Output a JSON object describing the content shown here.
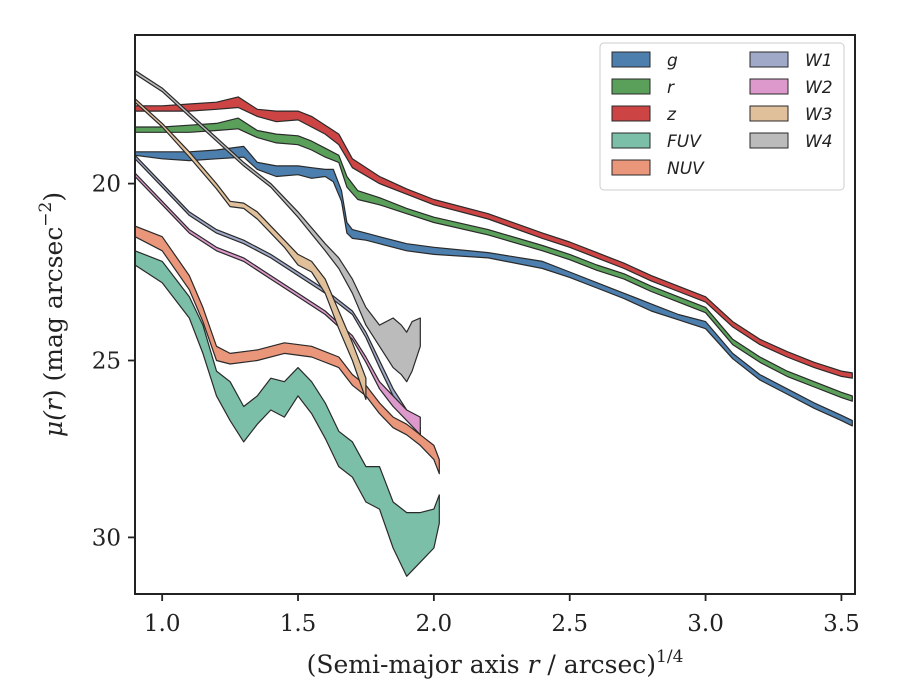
{
  "chart_data": {
    "type": "area",
    "xlabel": "(Semi-major axis r / arcsec)^1/4",
    "xlabel_parts": {
      "pre": "(Semi-major axis ",
      "var": "r",
      "post": " / arcsec)",
      "sup": "1/4"
    },
    "ylabel": "μ(r) (mag arcsec^−2)",
    "ylabel_parts": {
      "mu": "μ(",
      "var": "r",
      "post": ") (mag arcsec",
      "sup": "−2",
      "close": ")"
    },
    "xlim": [
      0.9,
      3.55
    ],
    "ylim": [
      31.6,
      15.8
    ],
    "y_inverted": true,
    "x_ticks": [
      1.0,
      1.5,
      2.0,
      2.5,
      3.0,
      3.5
    ],
    "x_tick_labels": [
      "1.0",
      "1.5",
      "2.0",
      "2.5",
      "3.0",
      "3.5"
    ],
    "y_ticks": [
      20,
      25,
      30
    ],
    "y_tick_labels": [
      "20",
      "25",
      "30"
    ],
    "grid": false,
    "legend_position": "top-right",
    "legend_columns": 2,
    "series": [
      {
        "name": "g",
        "color": "#4c7fae",
        "points": [
          [
            0.9,
            19.1,
            19.2
          ],
          [
            1.0,
            19.1,
            19.3
          ],
          [
            1.1,
            19.1,
            19.35
          ],
          [
            1.2,
            19.05,
            19.3
          ],
          [
            1.3,
            18.95,
            19.25
          ],
          [
            1.35,
            19.4,
            19.6
          ],
          [
            1.42,
            19.5,
            19.8
          ],
          [
            1.5,
            19.5,
            19.75
          ],
          [
            1.55,
            19.55,
            19.85
          ],
          [
            1.6,
            19.6,
            19.8
          ],
          [
            1.63,
            19.6,
            19.95
          ],
          [
            1.66,
            20.2,
            20.5
          ],
          [
            1.68,
            21.1,
            21.4
          ],
          [
            1.7,
            21.3,
            21.55
          ],
          [
            1.75,
            21.4,
            21.6
          ],
          [
            1.8,
            21.5,
            21.7
          ],
          [
            1.9,
            21.7,
            21.9
          ],
          [
            2.0,
            21.8,
            22.0
          ],
          [
            2.2,
            21.95,
            22.1
          ],
          [
            2.4,
            22.2,
            22.4
          ],
          [
            2.5,
            22.5,
            22.65
          ],
          [
            2.6,
            22.8,
            22.95
          ],
          [
            2.7,
            23.1,
            23.25
          ],
          [
            2.8,
            23.4,
            23.6
          ],
          [
            2.9,
            23.7,
            23.85
          ],
          [
            3.0,
            23.9,
            24.1
          ],
          [
            3.1,
            24.8,
            24.95
          ],
          [
            3.2,
            25.4,
            25.55
          ],
          [
            3.3,
            25.8,
            25.95
          ],
          [
            3.4,
            26.2,
            26.35
          ],
          [
            3.5,
            26.55,
            26.7
          ],
          [
            3.54,
            26.7,
            26.85
          ]
        ]
      },
      {
        "name": "r",
        "color": "#5aa05a",
        "points": [
          [
            0.9,
            18.4,
            18.55
          ],
          [
            1.0,
            18.4,
            18.55
          ],
          [
            1.1,
            18.35,
            18.55
          ],
          [
            1.2,
            18.3,
            18.5
          ],
          [
            1.28,
            18.15,
            18.45
          ],
          [
            1.35,
            18.5,
            18.7
          ],
          [
            1.42,
            18.6,
            18.85
          ],
          [
            1.5,
            18.65,
            18.9
          ],
          [
            1.55,
            18.8,
            19.05
          ],
          [
            1.6,
            19.0,
            19.25
          ],
          [
            1.65,
            19.2,
            19.4
          ],
          [
            1.68,
            19.8,
            20.1
          ],
          [
            1.72,
            20.2,
            20.45
          ],
          [
            1.8,
            20.4,
            20.6
          ],
          [
            1.9,
            20.7,
            20.85
          ],
          [
            2.0,
            20.95,
            21.1
          ],
          [
            2.2,
            21.3,
            21.45
          ],
          [
            2.4,
            21.75,
            21.9
          ],
          [
            2.5,
            22.0,
            22.15
          ],
          [
            2.6,
            22.3,
            22.45
          ],
          [
            2.7,
            22.55,
            22.7
          ],
          [
            2.8,
            22.9,
            23.05
          ],
          [
            2.9,
            23.2,
            23.35
          ],
          [
            3.0,
            23.5,
            23.65
          ],
          [
            3.1,
            24.4,
            24.55
          ],
          [
            3.2,
            24.9,
            25.05
          ],
          [
            3.3,
            25.3,
            25.45
          ],
          [
            3.4,
            25.6,
            25.75
          ],
          [
            3.5,
            25.9,
            26.05
          ],
          [
            3.54,
            26.0,
            26.15
          ]
        ]
      },
      {
        "name": "z",
        "color": "#cc4444",
        "points": [
          [
            0.9,
            17.8,
            17.95
          ],
          [
            1.0,
            17.8,
            17.95
          ],
          [
            1.1,
            17.75,
            17.95
          ],
          [
            1.2,
            17.7,
            17.9
          ],
          [
            1.28,
            17.55,
            17.85
          ],
          [
            1.35,
            17.9,
            18.1
          ],
          [
            1.42,
            17.95,
            18.25
          ],
          [
            1.5,
            17.95,
            18.2
          ],
          [
            1.55,
            18.1,
            18.4
          ],
          [
            1.6,
            18.35,
            18.6
          ],
          [
            1.65,
            18.6,
            18.9
          ],
          [
            1.7,
            19.3,
            19.55
          ],
          [
            1.8,
            19.8,
            20.0
          ],
          [
            1.9,
            20.15,
            20.3
          ],
          [
            2.0,
            20.45,
            20.6
          ],
          [
            2.2,
            20.85,
            21.0
          ],
          [
            2.4,
            21.4,
            21.55
          ],
          [
            2.5,
            21.65,
            21.8
          ],
          [
            2.6,
            21.95,
            22.1
          ],
          [
            2.7,
            22.25,
            22.4
          ],
          [
            2.8,
            22.6,
            22.75
          ],
          [
            2.9,
            22.9,
            23.05
          ],
          [
            3.0,
            23.2,
            23.35
          ],
          [
            3.1,
            23.9,
            24.05
          ],
          [
            3.2,
            24.4,
            24.55
          ],
          [
            3.3,
            24.75,
            24.9
          ],
          [
            3.4,
            25.05,
            25.2
          ],
          [
            3.5,
            25.3,
            25.45
          ],
          [
            3.54,
            25.35,
            25.5
          ]
        ]
      },
      {
        "name": "FUV",
        "color": "#7bbfa8",
        "points": [
          [
            0.9,
            21.9,
            22.3
          ],
          [
            1.0,
            22.2,
            22.8
          ],
          [
            1.1,
            23.2,
            23.8
          ],
          [
            1.15,
            24.0,
            24.8
          ],
          [
            1.2,
            25.3,
            26.0
          ],
          [
            1.25,
            25.6,
            26.7
          ],
          [
            1.3,
            26.3,
            27.3
          ],
          [
            1.35,
            26.0,
            26.8
          ],
          [
            1.4,
            25.5,
            26.4
          ],
          [
            1.45,
            25.6,
            26.6
          ],
          [
            1.5,
            25.2,
            26.0
          ],
          [
            1.55,
            25.6,
            26.5
          ],
          [
            1.6,
            26.2,
            27.2
          ],
          [
            1.65,
            27.0,
            28.0
          ],
          [
            1.7,
            27.3,
            28.3
          ],
          [
            1.75,
            28.0,
            29.0
          ],
          [
            1.8,
            28.0,
            29.2
          ],
          [
            1.85,
            29.0,
            30.3
          ],
          [
            1.9,
            29.3,
            31.1
          ],
          [
            1.95,
            29.3,
            30.7
          ],
          [
            2.0,
            29.2,
            30.3
          ],
          [
            2.02,
            28.8,
            29.6
          ]
        ]
      },
      {
        "name": "NUV",
        "color": "#e9967a",
        "points": [
          [
            0.9,
            21.2,
            21.5
          ],
          [
            1.0,
            21.5,
            21.9
          ],
          [
            1.1,
            22.6,
            23.0
          ],
          [
            1.15,
            23.5,
            23.9
          ],
          [
            1.2,
            24.6,
            25.0
          ],
          [
            1.25,
            24.8,
            25.1
          ],
          [
            1.35,
            24.7,
            25.0
          ],
          [
            1.45,
            24.5,
            24.8
          ],
          [
            1.55,
            24.6,
            24.9
          ],
          [
            1.65,
            24.9,
            25.2
          ],
          [
            1.7,
            25.4,
            25.7
          ],
          [
            1.75,
            25.7,
            26.0
          ],
          [
            1.8,
            26.2,
            26.5
          ],
          [
            1.85,
            26.6,
            26.9
          ],
          [
            1.9,
            26.8,
            27.1
          ],
          [
            1.95,
            27.1,
            27.4
          ],
          [
            2.0,
            27.4,
            27.8
          ],
          [
            2.02,
            27.8,
            28.2
          ]
        ]
      },
      {
        "name": "W1",
        "color": "#a0aac8",
        "points": [
          [
            0.9,
            19.2,
            19.3
          ],
          [
            1.0,
            20.0,
            20.1
          ],
          [
            1.1,
            20.8,
            20.9
          ],
          [
            1.2,
            21.3,
            21.4
          ],
          [
            1.3,
            21.6,
            21.7
          ],
          [
            1.4,
            22.0,
            22.1
          ],
          [
            1.5,
            22.5,
            22.6
          ],
          [
            1.6,
            23.0,
            23.1
          ],
          [
            1.7,
            23.6,
            23.7
          ],
          [
            1.75,
            24.2,
            24.35
          ],
          [
            1.8,
            25.0,
            25.2
          ],
          [
            1.85,
            25.8,
            26.0
          ],
          [
            1.9,
            26.4,
            26.6
          ],
          [
            1.95,
            26.9,
            27.1
          ]
        ]
      },
      {
        "name": "W2",
        "color": "#dd99cc",
        "points": [
          [
            0.9,
            19.7,
            19.8
          ],
          [
            1.0,
            20.5,
            20.6
          ],
          [
            1.1,
            21.3,
            21.4
          ],
          [
            1.2,
            21.8,
            21.9
          ],
          [
            1.3,
            22.1,
            22.2
          ],
          [
            1.4,
            22.6,
            22.7
          ],
          [
            1.5,
            23.1,
            23.2
          ],
          [
            1.6,
            23.6,
            23.7
          ],
          [
            1.7,
            24.3,
            24.4
          ],
          [
            1.75,
            24.9,
            25.05
          ],
          [
            1.8,
            25.6,
            25.8
          ],
          [
            1.85,
            26.0,
            26.3
          ],
          [
            1.9,
            26.4,
            26.7
          ],
          [
            1.95,
            26.6,
            27.1
          ]
        ]
      },
      {
        "name": "W3",
        "color": "#e0c09a",
        "points": [
          [
            0.9,
            17.6,
            17.7
          ],
          [
            1.0,
            18.3,
            18.4
          ],
          [
            1.1,
            19.1,
            19.25
          ],
          [
            1.2,
            20.0,
            20.15
          ],
          [
            1.25,
            20.5,
            20.65
          ],
          [
            1.3,
            20.55,
            20.7
          ],
          [
            1.35,
            20.8,
            21.0
          ],
          [
            1.4,
            21.2,
            21.4
          ],
          [
            1.45,
            21.6,
            21.8
          ],
          [
            1.5,
            22.0,
            22.3
          ],
          [
            1.55,
            22.2,
            22.5
          ],
          [
            1.6,
            22.7,
            23.1
          ],
          [
            1.65,
            23.6,
            24.1
          ],
          [
            1.7,
            24.5,
            25.0
          ],
          [
            1.75,
            25.5,
            26.1
          ]
        ]
      },
      {
        "name": "W4",
        "color": "#bbbbbb",
        "points": [
          [
            0.9,
            16.8,
            16.9
          ],
          [
            1.0,
            17.3,
            17.4
          ],
          [
            1.1,
            18.0,
            18.1
          ],
          [
            1.2,
            18.7,
            18.8
          ],
          [
            1.3,
            19.4,
            19.5
          ],
          [
            1.4,
            20.0,
            20.1
          ],
          [
            1.5,
            20.8,
            20.95
          ],
          [
            1.6,
            21.7,
            21.9
          ],
          [
            1.65,
            22.1,
            22.4
          ],
          [
            1.7,
            22.7,
            23.1
          ],
          [
            1.75,
            23.5,
            24.0
          ],
          [
            1.8,
            24.0,
            24.6
          ],
          [
            1.85,
            23.8,
            25.2
          ],
          [
            1.88,
            24.0,
            25.4
          ],
          [
            1.9,
            24.2,
            25.6
          ],
          [
            1.92,
            23.9,
            25.3
          ],
          [
            1.95,
            23.8,
            24.6
          ]
        ]
      }
    ]
  }
}
